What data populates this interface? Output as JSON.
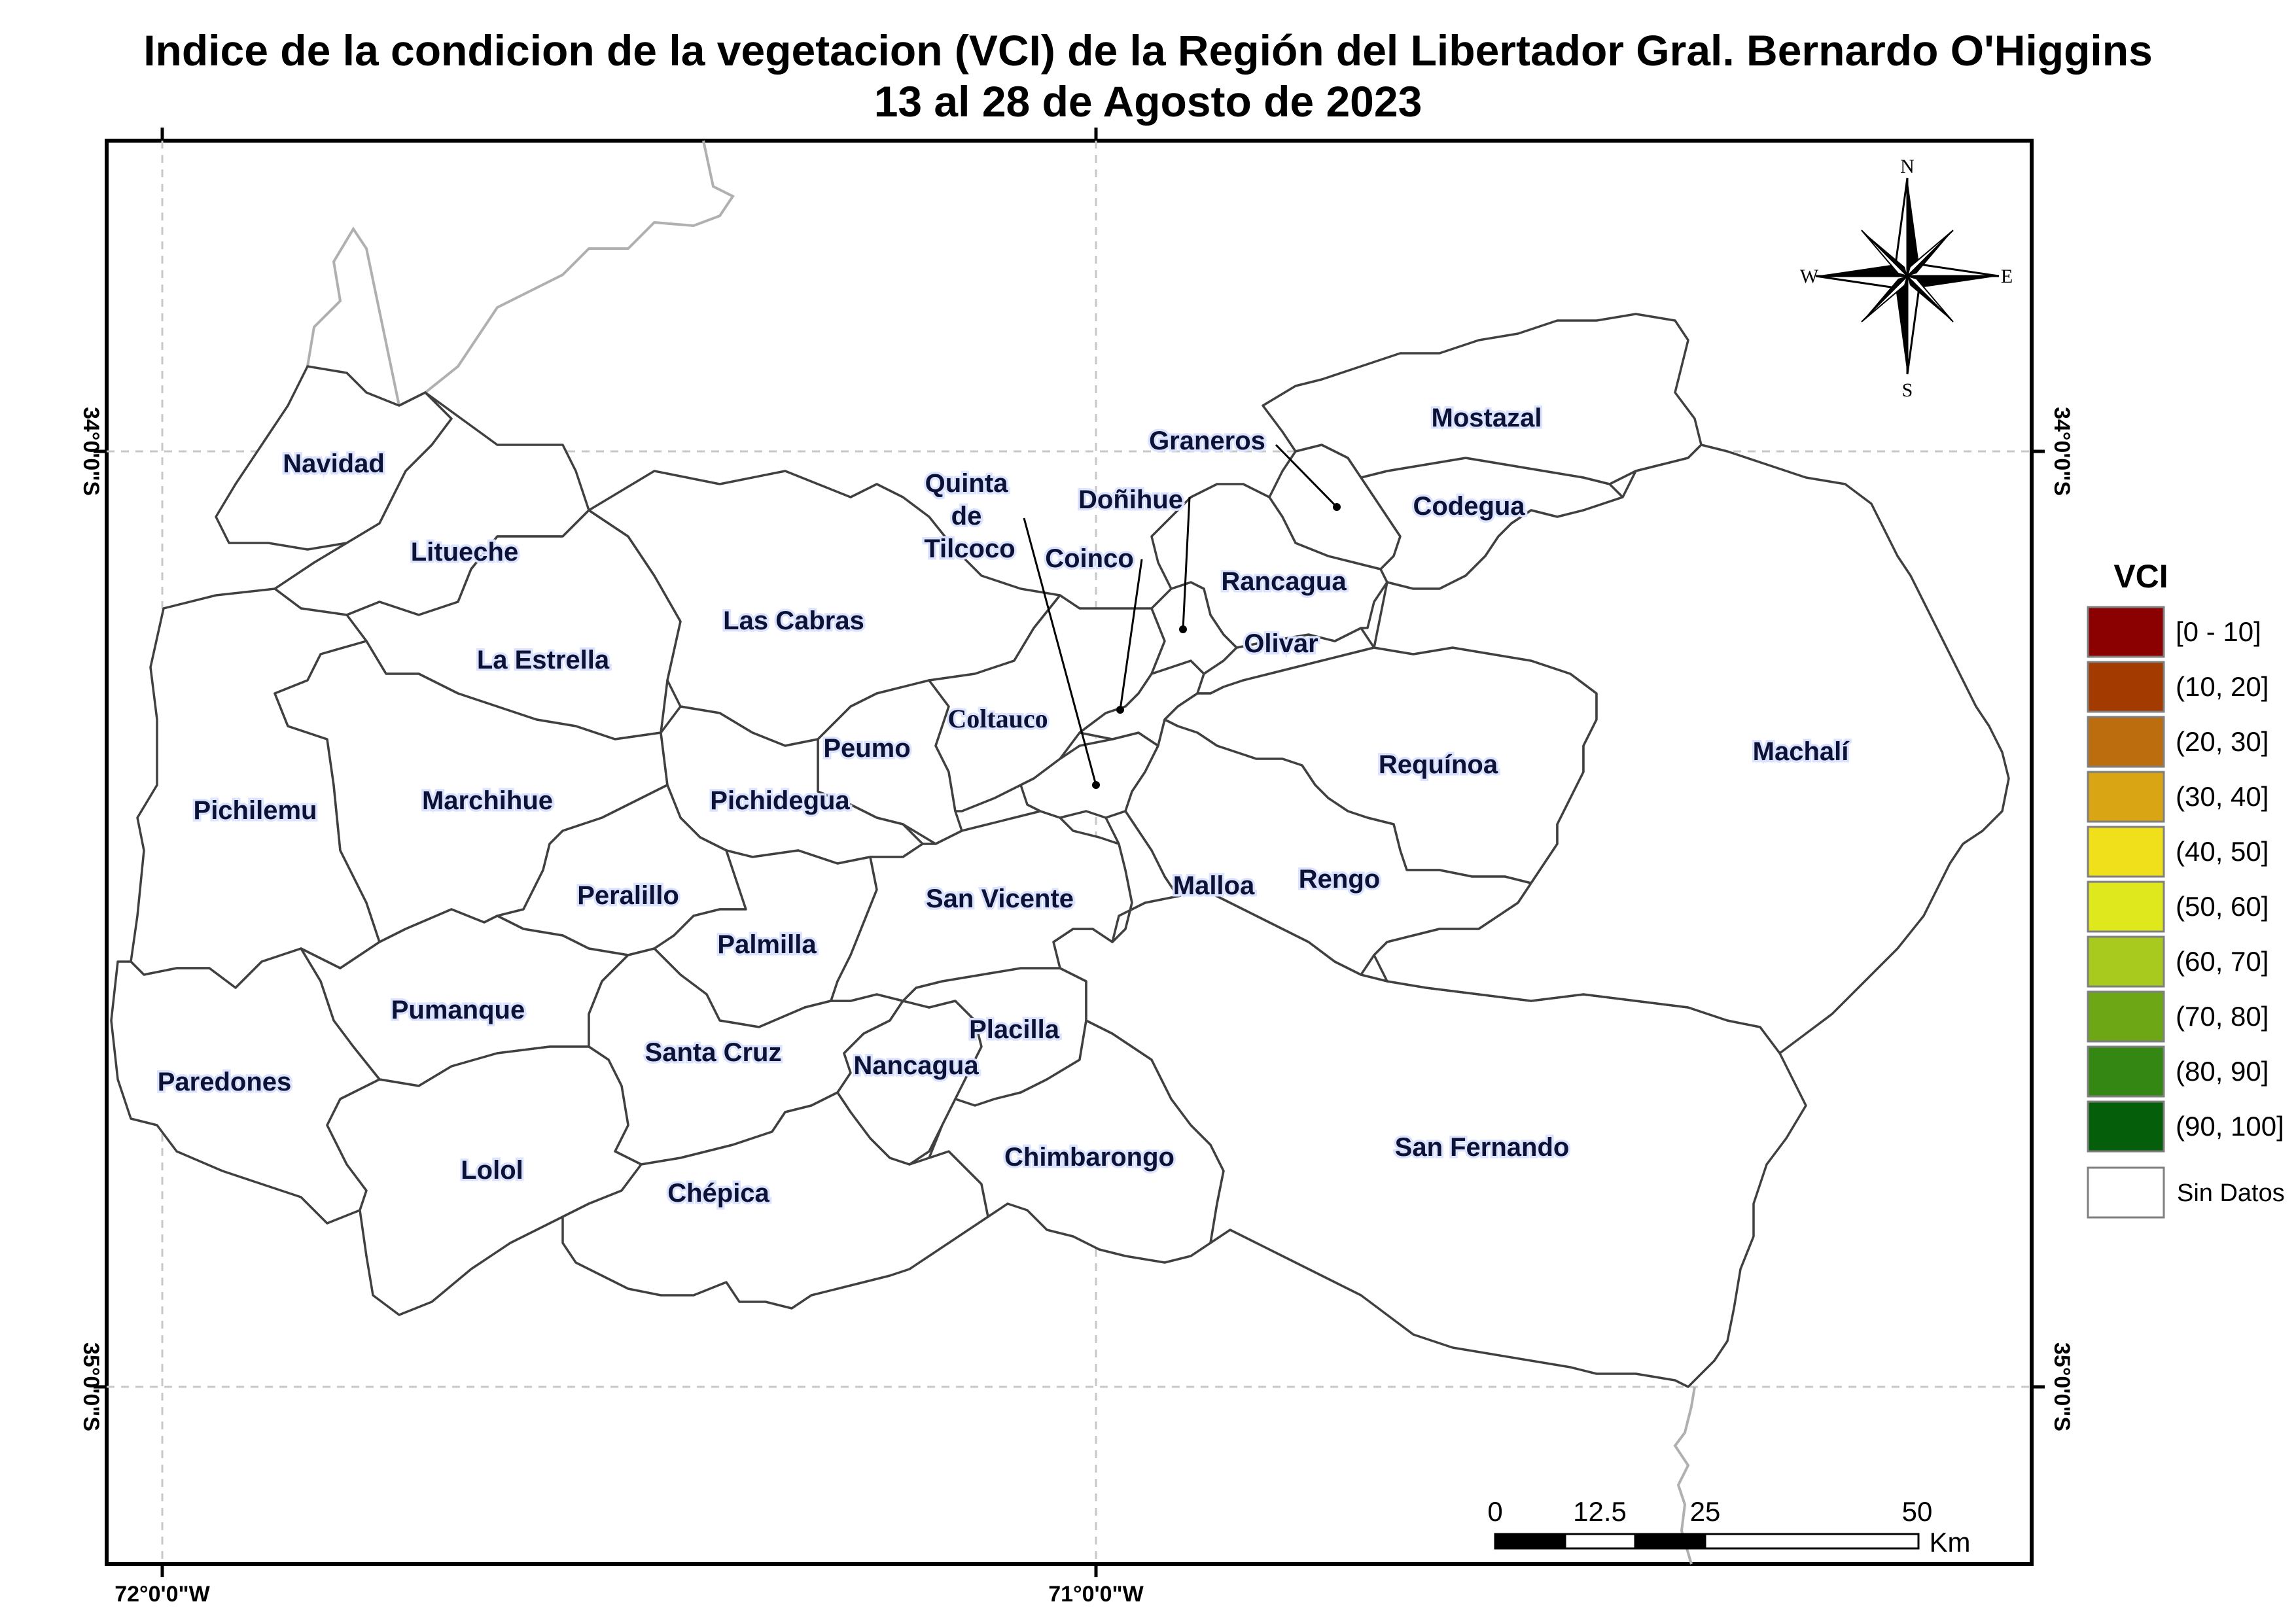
{
  "title": {
    "line1": "Indice de la condicion de la vegetacion (VCI) de la Región del Libertador Gral. Bernardo O'Higgins",
    "line2": "13 al 28 de Agosto de 2023"
  },
  "coordinates": {
    "lat_34": "34°0'0\"S",
    "lat_35": "35°0'0\"S",
    "lon_72": "72°0'0\"W",
    "lon_71": "71°0'0\"W"
  },
  "communes": {
    "navidad": "Navidad",
    "litueche": "Litueche",
    "la_estrella": "La Estrella",
    "pichilemu": "Pichilemu",
    "marchihue": "Marchihue",
    "las_cabras": "Las Cabras",
    "peumo": "Peumo",
    "pichidegua": "Pichidegua",
    "peralillo": "Peralillo",
    "palmilla": "Palmilla",
    "pumanque": "Pumanque",
    "paredones": "Paredones",
    "santa_cruz": "Santa Cruz",
    "lolol": "Lolol",
    "chepica": "Chépica",
    "nancagua": "Nancagua",
    "placilla": "Placilla",
    "chimbarongo": "Chimbarongo",
    "san_fernando": "San Fernando",
    "san_vicente": "San Vicente",
    "malloa": "Malloa",
    "rengo": "Rengo",
    "requinoa": "Requínoa",
    "machali": "Machalí",
    "olivar": "Olivar",
    "rancagua": "Rancagua",
    "coltauco": "Coltauco",
    "codegua": "Codegua",
    "mostazal": "Mostazal",
    "graneros": "Graneros",
    "donihue": "Doñihue",
    "coinco": "Coinco",
    "quinta_line1": "Quinta",
    "quinta_line2": "de",
    "quinta_line3": "Tilcoco"
  },
  "compass": {
    "n": "N",
    "s": "S",
    "e": "E",
    "w": "W"
  },
  "scale_bar": {
    "t0": "0",
    "t1": "12.5",
    "t2": "25",
    "t3": "50",
    "unit": "Km"
  },
  "legend": {
    "title": "VCI",
    "items": [
      {
        "label": "[0 - 10]",
        "color": "#8b0000"
      },
      {
        "label": "(10, 20]",
        "color": "#a33a00"
      },
      {
        "label": "(20, 30]",
        "color": "#bc6e0e"
      },
      {
        "label": "(30, 40]",
        "color": "#d9a514"
      },
      {
        "label": "(40, 50]",
        "color": "#f0e01c"
      },
      {
        "label": "(50, 60]",
        "color": "#dfe81d"
      },
      {
        "label": "(60, 70]",
        "color": "#a8c91d"
      },
      {
        "label": "(70, 80]",
        "color": "#6ea716"
      },
      {
        "label": "(80, 90]",
        "color": "#358714"
      },
      {
        "label": "(90, 100]",
        "color": "#055e0a"
      }
    ],
    "nodata_label": "Sin Datos",
    "nodata_color": "#ffffff"
  }
}
